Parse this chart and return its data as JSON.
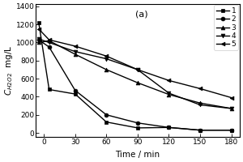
{
  "title": "(a)",
  "xlabel": "Time / min",
  "ylabel": "$C_{H2O2}$  mg/L",
  "xlim": [
    -8,
    188
  ],
  "ylim": [
    -40,
    1430
  ],
  "xticks": [
    0,
    30,
    60,
    90,
    120,
    150,
    180
  ],
  "yticks": [
    0,
    200,
    400,
    600,
    800,
    1000,
    1200,
    1400
  ],
  "series": [
    {
      "label": "1",
      "marker": "s",
      "x": [
        -5,
        5,
        30,
        60,
        90,
        120,
        150,
        180
      ],
      "y": [
        1220,
        480,
        430,
        120,
        55,
        60,
        30,
        30
      ]
    },
    {
      "label": "2",
      "marker": "o",
      "x": [
        -5,
        5,
        30,
        60,
        90,
        120,
        150,
        180
      ],
      "y": [
        1030,
        950,
        470,
        200,
        110,
        60,
        30,
        30
      ]
    },
    {
      "label": "3",
      "marker": "^",
      "x": [
        -5,
        5,
        30,
        60,
        90,
        120,
        150,
        180
      ],
      "y": [
        1000,
        1020,
        870,
        700,
        555,
        425,
        330,
        270
      ]
    },
    {
      "label": "4",
      "marker": "v",
      "x": [
        -5,
        5,
        30,
        60,
        90,
        120,
        150,
        180
      ],
      "y": [
        1040,
        1000,
        900,
        820,
        700,
        440,
        310,
        270
      ]
    },
    {
      "label": "5",
      "marker": "<",
      "x": [
        -5,
        5,
        30,
        60,
        90,
        120,
        150,
        180
      ],
      "y": [
        1150,
        1030,
        960,
        850,
        700,
        580,
        490,
        390
      ]
    }
  ],
  "line_color": "black",
  "markersize": 3.5,
  "linewidth": 1.0,
  "legend_fontsize": 6.5,
  "title_fontsize": 8,
  "tick_fontsize": 6.5,
  "axis_label_fontsize": 7.5
}
